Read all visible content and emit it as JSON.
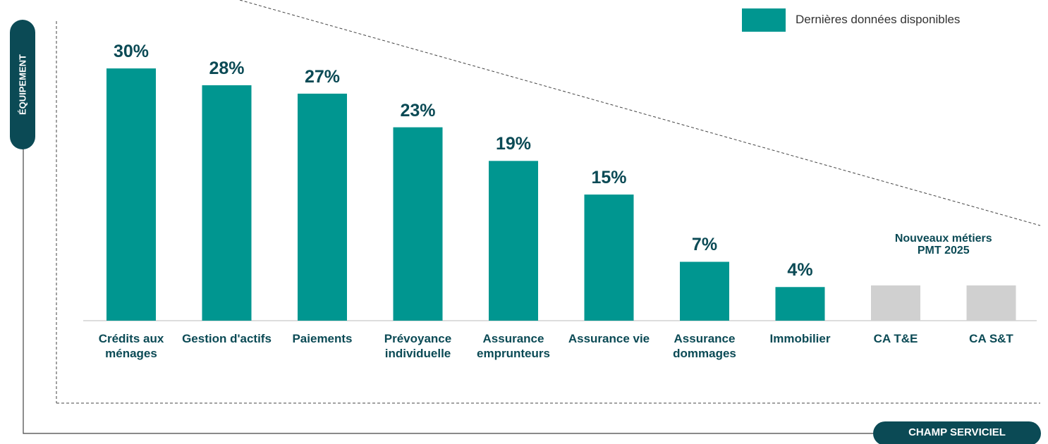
{
  "chart_data": {
    "type": "bar",
    "categories": [
      "Crédits aux ménages",
      "Gestion d'actifs",
      "Paiements",
      "Prévoyance individuelle",
      "Assurance emprunteurs",
      "Assurance vie",
      "Assurance dommages",
      "Immobilier",
      "CA T&E",
      "CA S&T"
    ],
    "series": [
      {
        "name": "Dernières données disponibles",
        "color": "#009690",
        "values": [
          30,
          28,
          27,
          23,
          19,
          15,
          7,
          4,
          null,
          null
        ],
        "value_labels": [
          "30%",
          "28%",
          "27%",
          "23%",
          "19%",
          "15%",
          "7%",
          "4%",
          null,
          null
        ]
      }
    ],
    "placeholder_color": "#d0d0d0",
    "annotation": "Nouveaux métiers PMT 2025",
    "y_axis_label": "ÉQUIPEMENT",
    "x_axis_label": "CHAMP SERVICIEL",
    "legend": "top-right"
  }
}
